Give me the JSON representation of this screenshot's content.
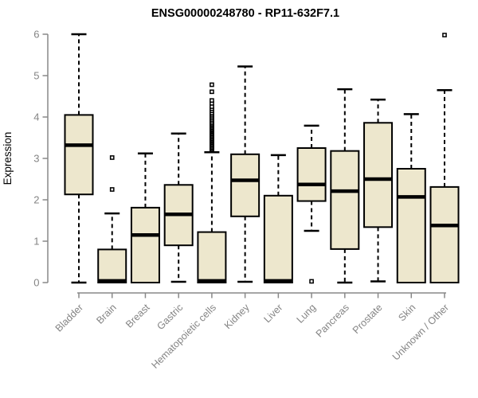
{
  "chart_data": {
    "type": "boxplot",
    "title": "ENSG00000248780 - RP11-632F7.1",
    "xlabel": "",
    "ylabel": "Expression",
    "ylim": [
      0,
      6
    ],
    "yticks": [
      0,
      1,
      2,
      3,
      4,
      5,
      6
    ],
    "grid": false,
    "legend": "none",
    "colors": {
      "box_fill": "#EDE7CD",
      "box_stroke": "#000000",
      "median": "#000000",
      "whisker": "#000000",
      "outlier_stroke": "#000000",
      "outlier_fill": "#ffffff",
      "axis": "#888888",
      "axis_text": "#848484",
      "title_text": "#000000",
      "background": "#ffffff"
    },
    "categories": [
      "Bladder",
      "Brain",
      "Breast",
      "Gastric",
      "Hematopoietic cells",
      "Kidney",
      "Liver",
      "Lung",
      "Pancreas",
      "Prostate",
      "Skin",
      "Unknown / Other"
    ],
    "series": [
      {
        "category": "Bladder",
        "low": 0.0,
        "q1": 2.13,
        "median": 3.32,
        "q3": 4.05,
        "high": 6.0,
        "outliers": []
      },
      {
        "category": "Brain",
        "low": 0.0,
        "q1": 0.0,
        "median": 0.04,
        "q3": 0.8,
        "high": 1.67,
        "outliers": [
          3.02,
          2.25
        ]
      },
      {
        "category": "Breast",
        "low": 0.0,
        "q1": 0.0,
        "median": 1.15,
        "q3": 1.81,
        "high": 3.12,
        "outliers": []
      },
      {
        "category": "Gastric",
        "low": 0.02,
        "q1": 0.9,
        "median": 1.65,
        "q3": 2.36,
        "high": 3.6,
        "outliers": []
      },
      {
        "category": "Hematopoietic cells",
        "low": 0.0,
        "q1": 0.0,
        "median": 0.04,
        "q3": 1.22,
        "high": 3.15,
        "outliers": [
          3.2,
          3.23,
          3.26,
          3.29,
          3.32,
          3.35,
          3.38,
          3.41,
          3.44,
          3.47,
          3.5,
          3.53,
          3.56,
          3.59,
          3.62,
          3.65,
          3.68,
          3.71,
          3.74,
          3.77,
          3.8,
          3.83,
          3.86,
          3.9,
          3.94,
          3.98,
          4.02,
          4.06,
          4.1,
          4.15,
          4.2,
          4.25,
          4.33,
          4.4,
          4.61,
          4.78
        ]
      },
      {
        "category": "Kidney",
        "low": 0.02,
        "q1": 1.6,
        "median": 2.47,
        "q3": 3.1,
        "high": 5.22,
        "outliers": []
      },
      {
        "category": "Liver",
        "low": 0.0,
        "q1": 0.0,
        "median": 0.04,
        "q3": 2.1,
        "high": 3.08,
        "outliers": []
      },
      {
        "category": "Lung",
        "low": 1.25,
        "q1": 1.97,
        "median": 2.37,
        "q3": 3.25,
        "high": 3.79,
        "outliers": [
          0.03
        ]
      },
      {
        "category": "Pancreas",
        "low": 0.0,
        "q1": 0.81,
        "median": 2.21,
        "q3": 3.18,
        "high": 4.67,
        "outliers": []
      },
      {
        "category": "Prostate",
        "low": 0.03,
        "q1": 1.34,
        "median": 2.5,
        "q3": 3.86,
        "high": 4.42,
        "outliers": []
      },
      {
        "category": "Skin",
        "low": 0.0,
        "q1": 0.0,
        "median": 2.07,
        "q3": 2.75,
        "high": 4.07,
        "outliers": []
      },
      {
        "category": "Unknown / Other",
        "low": 0.0,
        "q1": 0.0,
        "median": 1.38,
        "q3": 2.31,
        "high": 4.65,
        "outliers": [
          5.98
        ]
      }
    ]
  }
}
